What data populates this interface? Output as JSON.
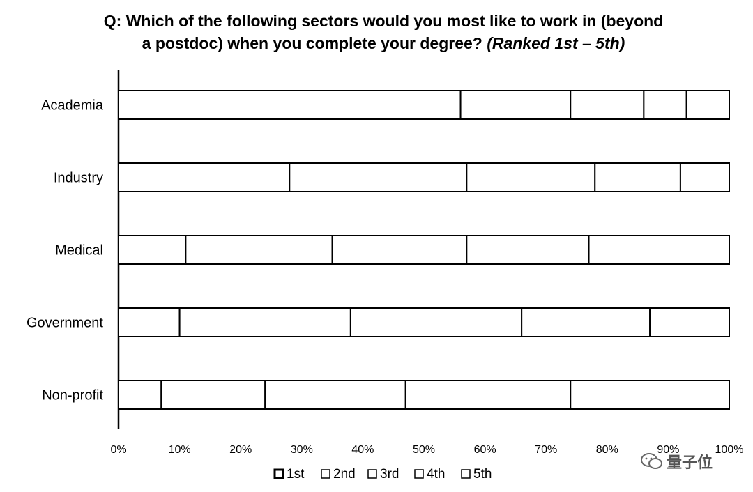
{
  "chart_data": {
    "type": "bar",
    "orientation": "horizontal",
    "stacked": true,
    "normalized_percent": true,
    "title_line1": "Q: Which of the following sectors would you most like to work in (beyond",
    "title_line2_prefix": "a postdoc) when you complete your degree?",
    "title_line2_suffix": "(Ranked 1st – 5th)",
    "categories": [
      "Academia",
      "Industry",
      "Medical",
      "Government",
      "Non-profit"
    ],
    "series": [
      {
        "name": "1st",
        "values": [
          56,
          28,
          11,
          10,
          7
        ]
      },
      {
        "name": "2nd",
        "values": [
          18,
          29,
          24,
          28,
          17
        ]
      },
      {
        "name": "3rd",
        "values": [
          12,
          21,
          22,
          28,
          23
        ]
      },
      {
        "name": "4th",
        "values": [
          7,
          14,
          20,
          21,
          27
        ]
      },
      {
        "name": "5th",
        "values": [
          7,
          8,
          23,
          13,
          26
        ]
      }
    ],
    "x_ticks": [
      "0%",
      "10%",
      "20%",
      "30%",
      "40%",
      "50%",
      "60%",
      "70%",
      "80%",
      "90%",
      "100%"
    ],
    "xlim": [
      0,
      100
    ],
    "grid": false,
    "legend_position": "bottom",
    "colors": {
      "fill": "#ffffff",
      "stroke": "#000000"
    }
  },
  "watermark": {
    "text": "量子位",
    "icon": "wechat-icon"
  }
}
